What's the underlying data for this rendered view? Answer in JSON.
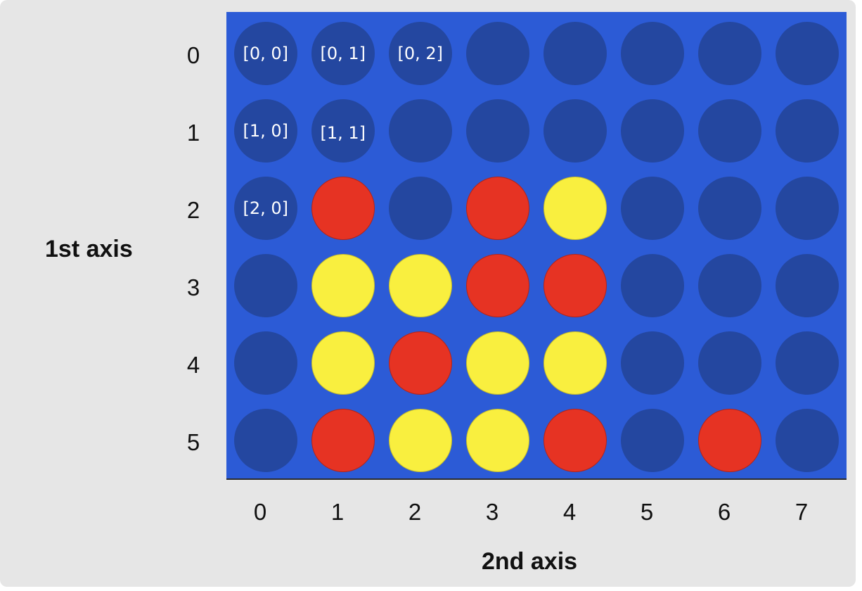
{
  "colors": {
    "background": "#e6e6e6",
    "board": "#2c5bd6",
    "empty_slot": "#2447a0",
    "red_piece": "#e63323",
    "yellow_piece": "#f9ef3f",
    "text": "#111111",
    "cell_label_text": "#ffffff"
  },
  "axes": {
    "row_title": "1st axis",
    "col_title": "2nd axis",
    "row_ticks": [
      "0",
      "1",
      "2",
      "3",
      "4",
      "5"
    ],
    "col_ticks": [
      "0",
      "1",
      "2",
      "3",
      "4",
      "5",
      "6",
      "7"
    ]
  },
  "grid": [
    [
      "empty",
      "empty",
      "empty",
      "empty",
      "empty",
      "empty",
      "empty",
      "empty"
    ],
    [
      "empty",
      "empty",
      "empty",
      "empty",
      "empty",
      "empty",
      "empty",
      "empty"
    ],
    [
      "empty",
      "red",
      "empty",
      "red",
      "yellow",
      "empty",
      "empty",
      "empty"
    ],
    [
      "empty",
      "yellow",
      "yellow",
      "red",
      "red",
      "empty",
      "empty",
      "empty"
    ],
    [
      "empty",
      "yellow",
      "red",
      "yellow",
      "yellow",
      "empty",
      "empty",
      "empty"
    ],
    [
      "empty",
      "red",
      "yellow",
      "yellow",
      "red",
      "empty",
      "red",
      "empty"
    ]
  ],
  "cell_labels": [
    {
      "row": 0,
      "col": 0,
      "text": "[0, 0]"
    },
    {
      "row": 0,
      "col": 1,
      "text": "[0, 1]"
    },
    {
      "row": 0,
      "col": 2,
      "text": "[0, 2]"
    },
    {
      "row": 1,
      "col": 0,
      "text": "[1, 0]"
    },
    {
      "row": 1,
      "col": 1,
      "text": "[1, 1]"
    },
    {
      "row": 2,
      "col": 0,
      "text": "[2, 0]"
    }
  ]
}
